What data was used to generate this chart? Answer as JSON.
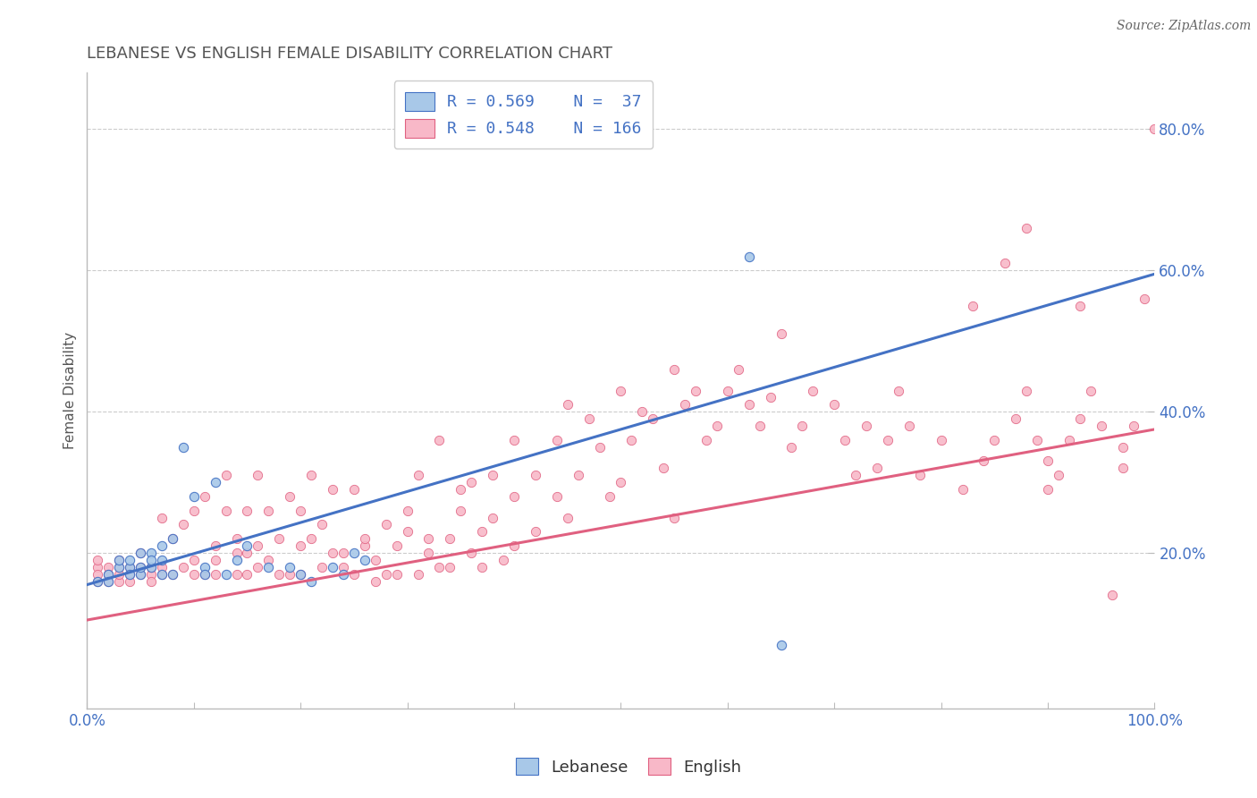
{
  "title": "LEBANESE VS ENGLISH FEMALE DISABILITY CORRELATION CHART",
  "source": "Source: ZipAtlas.com",
  "ylabel": "Female Disability",
  "legend_labels": [
    "Lebanese",
    "English"
  ],
  "lebanese_color": "#a8c8e8",
  "english_color": "#f8b8c8",
  "lebanese_line_color": "#4472c4",
  "english_line_color": "#e06080",
  "R_lebanese": 0.569,
  "N_lebanese": 37,
  "R_english": 0.548,
  "N_english": 166,
  "xlim": [
    0.0,
    1.0
  ],
  "ylim": [
    -0.02,
    0.88
  ],
  "yticks": [
    0.2,
    0.4,
    0.6,
    0.8
  ],
  "xticks": [
    0.0,
    0.1,
    0.2,
    0.3,
    0.4,
    0.5,
    0.6,
    0.7,
    0.8,
    0.9,
    1.0
  ],
  "lebanese_scatter": [
    [
      0.01,
      0.16
    ],
    [
      0.02,
      0.17
    ],
    [
      0.02,
      0.16
    ],
    [
      0.03,
      0.18
    ],
    [
      0.03,
      0.19
    ],
    [
      0.04,
      0.18
    ],
    [
      0.04,
      0.17
    ],
    [
      0.04,
      0.19
    ],
    [
      0.05,
      0.17
    ],
    [
      0.05,
      0.2
    ],
    [
      0.05,
      0.18
    ],
    [
      0.06,
      0.18
    ],
    [
      0.06,
      0.2
    ],
    [
      0.06,
      0.19
    ],
    [
      0.07,
      0.17
    ],
    [
      0.07,
      0.19
    ],
    [
      0.07,
      0.21
    ],
    [
      0.08,
      0.22
    ],
    [
      0.08,
      0.17
    ],
    [
      0.09,
      0.35
    ],
    [
      0.1,
      0.28
    ],
    [
      0.11,
      0.18
    ],
    [
      0.11,
      0.17
    ],
    [
      0.12,
      0.3
    ],
    [
      0.13,
      0.17
    ],
    [
      0.14,
      0.19
    ],
    [
      0.15,
      0.21
    ],
    [
      0.17,
      0.18
    ],
    [
      0.19,
      0.18
    ],
    [
      0.2,
      0.17
    ],
    [
      0.21,
      0.16
    ],
    [
      0.23,
      0.18
    ],
    [
      0.24,
      0.17
    ],
    [
      0.25,
      0.2
    ],
    [
      0.26,
      0.19
    ],
    [
      0.62,
      0.62
    ],
    [
      0.65,
      0.07
    ]
  ],
  "english_scatter": [
    [
      0.01,
      0.18
    ],
    [
      0.01,
      0.16
    ],
    [
      0.01,
      0.17
    ],
    [
      0.01,
      0.19
    ],
    [
      0.02,
      0.17
    ],
    [
      0.02,
      0.16
    ],
    [
      0.02,
      0.18
    ],
    [
      0.02,
      0.17
    ],
    [
      0.03,
      0.18
    ],
    [
      0.03,
      0.16
    ],
    [
      0.03,
      0.17
    ],
    [
      0.03,
      0.19
    ],
    [
      0.04,
      0.17
    ],
    [
      0.04,
      0.18
    ],
    [
      0.04,
      0.16
    ],
    [
      0.05,
      0.18
    ],
    [
      0.05,
      0.17
    ],
    [
      0.05,
      0.2
    ],
    [
      0.06,
      0.17
    ],
    [
      0.06,
      0.18
    ],
    [
      0.06,
      0.16
    ],
    [
      0.07,
      0.17
    ],
    [
      0.07,
      0.18
    ],
    [
      0.07,
      0.25
    ],
    [
      0.08,
      0.17
    ],
    [
      0.08,
      0.22
    ],
    [
      0.09,
      0.18
    ],
    [
      0.09,
      0.24
    ],
    [
      0.1,
      0.17
    ],
    [
      0.1,
      0.26
    ],
    [
      0.1,
      0.19
    ],
    [
      0.11,
      0.17
    ],
    [
      0.11,
      0.28
    ],
    [
      0.12,
      0.17
    ],
    [
      0.12,
      0.21
    ],
    [
      0.12,
      0.19
    ],
    [
      0.13,
      0.26
    ],
    [
      0.13,
      0.31
    ],
    [
      0.14,
      0.17
    ],
    [
      0.14,
      0.22
    ],
    [
      0.14,
      0.2
    ],
    [
      0.15,
      0.17
    ],
    [
      0.15,
      0.26
    ],
    [
      0.15,
      0.2
    ],
    [
      0.16,
      0.21
    ],
    [
      0.16,
      0.31
    ],
    [
      0.16,
      0.18
    ],
    [
      0.17,
      0.19
    ],
    [
      0.17,
      0.26
    ],
    [
      0.18,
      0.22
    ],
    [
      0.18,
      0.17
    ],
    [
      0.19,
      0.28
    ],
    [
      0.19,
      0.17
    ],
    [
      0.2,
      0.21
    ],
    [
      0.2,
      0.26
    ],
    [
      0.2,
      0.17
    ],
    [
      0.21,
      0.22
    ],
    [
      0.21,
      0.31
    ],
    [
      0.22,
      0.18
    ],
    [
      0.22,
      0.24
    ],
    [
      0.23,
      0.2
    ],
    [
      0.23,
      0.29
    ],
    [
      0.24,
      0.2
    ],
    [
      0.24,
      0.18
    ],
    [
      0.25,
      0.17
    ],
    [
      0.25,
      0.29
    ],
    [
      0.26,
      0.21
    ],
    [
      0.26,
      0.22
    ],
    [
      0.27,
      0.16
    ],
    [
      0.27,
      0.19
    ],
    [
      0.28,
      0.24
    ],
    [
      0.28,
      0.17
    ],
    [
      0.29,
      0.21
    ],
    [
      0.29,
      0.17
    ],
    [
      0.3,
      0.23
    ],
    [
      0.3,
      0.26
    ],
    [
      0.31,
      0.17
    ],
    [
      0.31,
      0.31
    ],
    [
      0.32,
      0.2
    ],
    [
      0.32,
      0.22
    ],
    [
      0.33,
      0.18
    ],
    [
      0.33,
      0.36
    ],
    [
      0.34,
      0.22
    ],
    [
      0.34,
      0.18
    ],
    [
      0.35,
      0.26
    ],
    [
      0.35,
      0.29
    ],
    [
      0.36,
      0.2
    ],
    [
      0.36,
      0.3
    ],
    [
      0.37,
      0.23
    ],
    [
      0.37,
      0.18
    ],
    [
      0.38,
      0.31
    ],
    [
      0.38,
      0.25
    ],
    [
      0.39,
      0.19
    ],
    [
      0.4,
      0.21
    ],
    [
      0.4,
      0.36
    ],
    [
      0.4,
      0.28
    ],
    [
      0.42,
      0.31
    ],
    [
      0.42,
      0.23
    ],
    [
      0.44,
      0.36
    ],
    [
      0.44,
      0.28
    ],
    [
      0.45,
      0.41
    ],
    [
      0.45,
      0.25
    ],
    [
      0.46,
      0.31
    ],
    [
      0.47,
      0.39
    ],
    [
      0.48,
      0.35
    ],
    [
      0.49,
      0.28
    ],
    [
      0.5,
      0.43
    ],
    [
      0.5,
      0.3
    ],
    [
      0.51,
      0.36
    ],
    [
      0.52,
      0.4
    ],
    [
      0.53,
      0.39
    ],
    [
      0.54,
      0.32
    ],
    [
      0.55,
      0.46
    ],
    [
      0.55,
      0.25
    ],
    [
      0.56,
      0.41
    ],
    [
      0.57,
      0.43
    ],
    [
      0.58,
      0.36
    ],
    [
      0.59,
      0.38
    ],
    [
      0.6,
      0.43
    ],
    [
      0.61,
      0.46
    ],
    [
      0.62,
      0.41
    ],
    [
      0.63,
      0.38
    ],
    [
      0.64,
      0.42
    ],
    [
      0.65,
      0.51
    ],
    [
      0.66,
      0.35
    ],
    [
      0.67,
      0.38
    ],
    [
      0.68,
      0.43
    ],
    [
      0.7,
      0.41
    ],
    [
      0.71,
      0.36
    ],
    [
      0.72,
      0.31
    ],
    [
      0.73,
      0.38
    ],
    [
      0.74,
      0.32
    ],
    [
      0.75,
      0.36
    ],
    [
      0.76,
      0.43
    ],
    [
      0.77,
      0.38
    ],
    [
      0.78,
      0.31
    ],
    [
      0.8,
      0.36
    ],
    [
      0.82,
      0.29
    ],
    [
      0.83,
      0.55
    ],
    [
      0.84,
      0.33
    ],
    [
      0.85,
      0.36
    ],
    [
      0.86,
      0.61
    ],
    [
      0.87,
      0.39
    ],
    [
      0.88,
      0.43
    ],
    [
      0.88,
      0.66
    ],
    [
      0.89,
      0.36
    ],
    [
      0.9,
      0.33
    ],
    [
      0.9,
      0.29
    ],
    [
      0.91,
      0.31
    ],
    [
      0.92,
      0.36
    ],
    [
      0.93,
      0.39
    ],
    [
      0.93,
      0.55
    ],
    [
      0.94,
      0.43
    ],
    [
      0.95,
      0.38
    ],
    [
      0.96,
      0.14
    ],
    [
      0.97,
      0.35
    ],
    [
      0.97,
      0.32
    ],
    [
      0.98,
      0.38
    ],
    [
      0.99,
      0.56
    ],
    [
      1.0,
      0.8
    ]
  ],
  "lebanese_line": [
    [
      0.0,
      0.155
    ],
    [
      1.0,
      0.595
    ]
  ],
  "english_line": [
    [
      0.0,
      0.105
    ],
    [
      1.0,
      0.375
    ]
  ],
  "title_fontsize": 13,
  "axis_label_fontsize": 11,
  "tick_fontsize": 12,
  "legend_fontsize": 13,
  "source_fontsize": 10,
  "marker_size": 55,
  "background_color": "#ffffff",
  "grid_color": "#cccccc",
  "axis_color": "#bbbbbb",
  "title_color": "#555555",
  "tick_color": "#4472c4",
  "source_color": "#666666"
}
